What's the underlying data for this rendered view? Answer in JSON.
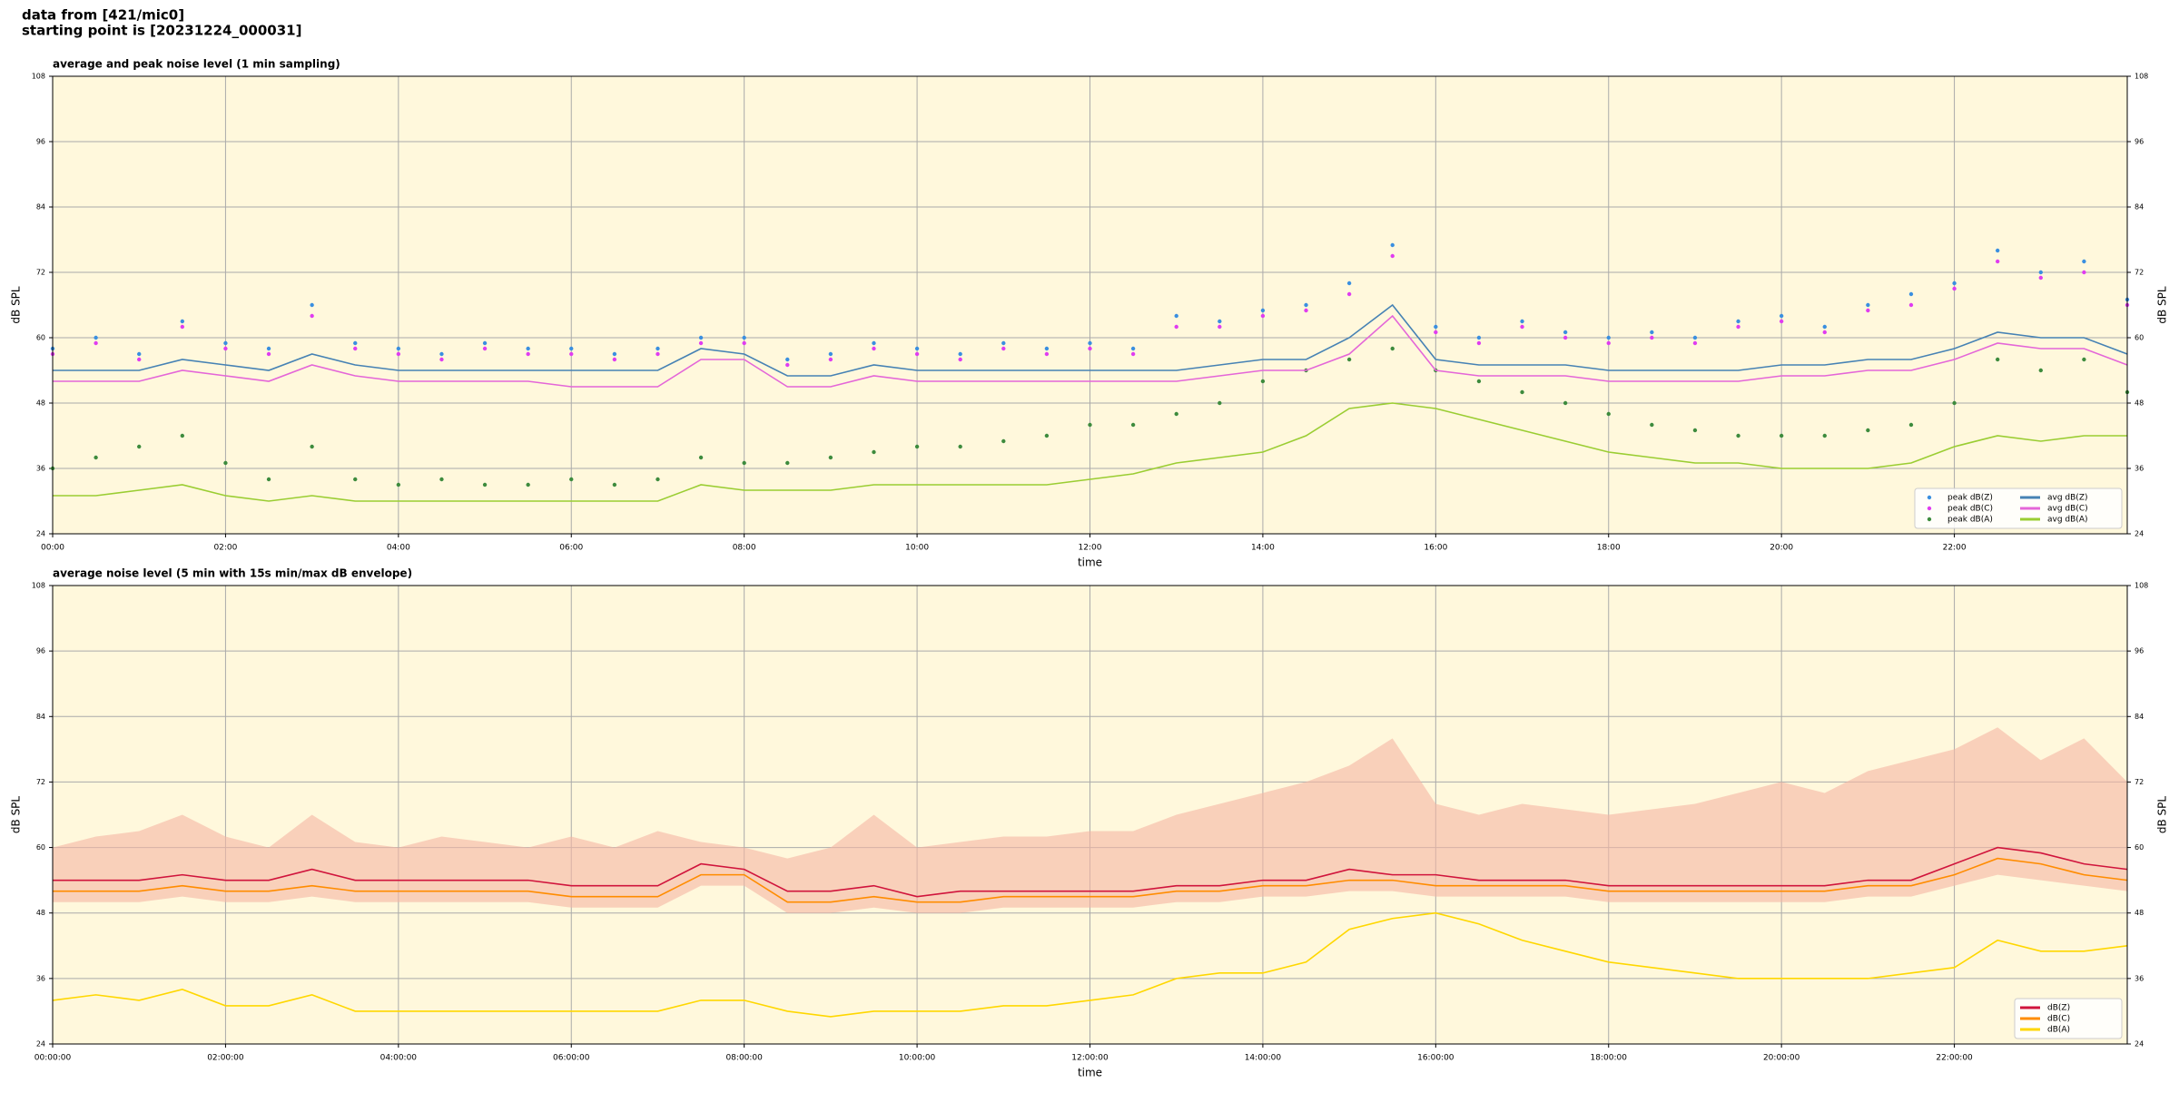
{
  "header": {
    "source": "data from [421/mic0]",
    "start": "starting point is [20231224_000031]"
  },
  "chart_data": [
    {
      "type": "line",
      "title": "average and peak noise level (1 min sampling)",
      "xlabel": "time",
      "ylabel": "dB SPL",
      "xlim": [
        0,
        24
      ],
      "ylim": [
        24,
        108
      ],
      "yticks": [
        24,
        36,
        48,
        60,
        72,
        84,
        96,
        108
      ],
      "xticks": [
        {
          "value": 0,
          "label": "00:00"
        },
        {
          "value": 2,
          "label": "02:00"
        },
        {
          "value": 4,
          "label": "04:00"
        },
        {
          "value": 6,
          "label": "06:00"
        },
        {
          "value": 8,
          "label": "08:00"
        },
        {
          "value": 10,
          "label": "10:00"
        },
        {
          "value": 12,
          "label": "12:00"
        },
        {
          "value": 14,
          "label": "14:00"
        },
        {
          "value": 16,
          "label": "16:00"
        },
        {
          "value": 18,
          "label": "18:00"
        },
        {
          "value": 20,
          "label": "20:00"
        },
        {
          "value": 22,
          "label": "22:00"
        }
      ],
      "grid": true,
      "legend": "lower right",
      "legend_columns": 2,
      "x": [
        0,
        0.5,
        1,
        1.5,
        2,
        2.5,
        3,
        3.5,
        4,
        4.5,
        5,
        5.5,
        6,
        6.5,
        7,
        7.5,
        8,
        8.5,
        9,
        9.5,
        10,
        10.5,
        11,
        11.5,
        12,
        12.5,
        13,
        13.5,
        14,
        14.5,
        15,
        15.5,
        16,
        16.5,
        17,
        17.5,
        18,
        18.5,
        19,
        19.5,
        20,
        20.5,
        21,
        21.5,
        22,
        22.5,
        23,
        23.5,
        24
      ],
      "series": [
        {
          "name": "peak dB(Z)",
          "type": "scatter",
          "color": "#3a8fe0",
          "values": [
            58,
            60,
            57,
            63,
            59,
            58,
            66,
            59,
            58,
            57,
            59,
            58,
            58,
            57,
            58,
            60,
            60,
            56,
            57,
            59,
            58,
            57,
            59,
            58,
            59,
            58,
            64,
            63,
            65,
            66,
            70,
            77,
            62,
            60,
            63,
            61,
            60,
            61,
            60,
            63,
            64,
            62,
            66,
            68,
            70,
            76,
            72,
            74,
            67
          ]
        },
        {
          "name": "peak dB(C)",
          "type": "scatter",
          "color": "#e03cf0",
          "values": [
            57,
            59,
            56,
            62,
            58,
            57,
            64,
            58,
            57,
            56,
            58,
            57,
            57,
            56,
            57,
            59,
            59,
            55,
            56,
            58,
            57,
            56,
            58,
            57,
            58,
            57,
            62,
            62,
            64,
            65,
            68,
            75,
            61,
            59,
            62,
            60,
            59,
            60,
            59,
            62,
            63,
            61,
            65,
            66,
            69,
            74,
            71,
            72,
            66
          ]
        },
        {
          "name": "peak dB(A)",
          "type": "scatter",
          "color": "#3d8b3d",
          "values": [
            36,
            38,
            40,
            42,
            37,
            34,
            40,
            34,
            33,
            34,
            33,
            33,
            34,
            33,
            34,
            38,
            37,
            37,
            38,
            39,
            40,
            40,
            41,
            42,
            44,
            44,
            46,
            48,
            52,
            54,
            56,
            58,
            54,
            52,
            50,
            48,
            46,
            44,
            43,
            42,
            42,
            42,
            43,
            44,
            48,
            56,
            54,
            56,
            50
          ]
        },
        {
          "name": "avg dB(Z)",
          "type": "line",
          "color": "#4682b4",
          "values": [
            54,
            54,
            54,
            56,
            55,
            54,
            57,
            55,
            54,
            54,
            54,
            54,
            54,
            54,
            54,
            58,
            57,
            53,
            53,
            55,
            54,
            54,
            54,
            54,
            54,
            54,
            54,
            55,
            56,
            56,
            60,
            66,
            56,
            55,
            55,
            55,
            54,
            54,
            54,
            54,
            55,
            55,
            56,
            56,
            58,
            61,
            60,
            60,
            57
          ]
        },
        {
          "name": "avg dB(C)",
          "type": "line",
          "color": "#e466d8",
          "values": [
            52,
            52,
            52,
            54,
            53,
            52,
            55,
            53,
            52,
            52,
            52,
            52,
            51,
            51,
            51,
            56,
            56,
            51,
            51,
            53,
            52,
            52,
            52,
            52,
            52,
            52,
            52,
            53,
            54,
            54,
            57,
            64,
            54,
            53,
            53,
            53,
            52,
            52,
            52,
            52,
            53,
            53,
            54,
            54,
            56,
            59,
            58,
            58,
            55
          ]
        },
        {
          "name": "avg dB(A)",
          "type": "line",
          "color": "#9acd32",
          "values": [
            31,
            31,
            32,
            33,
            31,
            30,
            31,
            30,
            30,
            30,
            30,
            30,
            30,
            30,
            30,
            33,
            32,
            32,
            32,
            33,
            33,
            33,
            33,
            33,
            34,
            35,
            37,
            38,
            39,
            42,
            47,
            48,
            47,
            45,
            43,
            41,
            39,
            38,
            37,
            37,
            36,
            36,
            36,
            37,
            40,
            42,
            41,
            42,
            42
          ]
        }
      ]
    },
    {
      "type": "line",
      "title": "average noise level (5 min with 15s min/max dB envelope)",
      "xlabel": "time",
      "ylabel": "dB SPL",
      "xlim": [
        0,
        24
      ],
      "ylim": [
        24,
        108
      ],
      "yticks": [
        24,
        36,
        48,
        60,
        72,
        84,
        96,
        108
      ],
      "xticks": [
        {
          "value": 0,
          "label": "00:00:00"
        },
        {
          "value": 2,
          "label": "02:00:00"
        },
        {
          "value": 4,
          "label": "04:00:00"
        },
        {
          "value": 6,
          "label": "06:00:00"
        },
        {
          "value": 8,
          "label": "08:00:00"
        },
        {
          "value": 10,
          "label": "10:00:00"
        },
        {
          "value": 12,
          "label": "12:00:00"
        },
        {
          "value": 14,
          "label": "14:00:00"
        },
        {
          "value": 16,
          "label": "16:00:00"
        },
        {
          "value": 18,
          "label": "18:00:00"
        },
        {
          "value": 20,
          "label": "20:00:00"
        },
        {
          "value": 22,
          "label": "22:00:00"
        }
      ],
      "grid": true,
      "legend": "lower right",
      "legend_columns": 1,
      "x": [
        0,
        0.5,
        1,
        1.5,
        2,
        2.5,
        3,
        3.5,
        4,
        4.5,
        5,
        5.5,
        6,
        6.5,
        7,
        7.5,
        8,
        8.5,
        9,
        9.5,
        10,
        10.5,
        11,
        11.5,
        12,
        12.5,
        13,
        13.5,
        14,
        14.5,
        15,
        15.5,
        16,
        16.5,
        17,
        17.5,
        18,
        18.5,
        19,
        19.5,
        20,
        20.5,
        21,
        21.5,
        22,
        22.5,
        23,
        23.5,
        24
      ],
      "envelope": {
        "color": "#f5b5a3",
        "max": [
          60,
          62,
          63,
          66,
          62,
          60,
          66,
          61,
          60,
          62,
          61,
          60,
          62,
          60,
          63,
          61,
          60,
          58,
          60,
          66,
          60,
          61,
          62,
          62,
          63,
          63,
          66,
          68,
          70,
          72,
          75,
          80,
          68,
          66,
          68,
          67,
          66,
          67,
          68,
          70,
          72,
          70,
          74,
          76,
          78,
          82,
          76,
          80,
          72
        ],
        "min": [
          50,
          50,
          50,
          51,
          50,
          50,
          51,
          50,
          50,
          50,
          50,
          50,
          49,
          49,
          49,
          53,
          53,
          48,
          48,
          49,
          48,
          48,
          49,
          49,
          49,
          49,
          50,
          50,
          51,
          51,
          52,
          52,
          51,
          51,
          51,
          51,
          50,
          50,
          50,
          50,
          50,
          50,
          51,
          51,
          53,
          55,
          54,
          53,
          52
        ]
      },
      "series": [
        {
          "name": "dB(Z)",
          "type": "line",
          "color": "#d0143c",
          "values": [
            54,
            54,
            54,
            55,
            54,
            54,
            56,
            54,
            54,
            54,
            54,
            54,
            53,
            53,
            53,
            57,
            56,
            52,
            52,
            53,
            51,
            52,
            52,
            52,
            52,
            52,
            53,
            53,
            54,
            54,
            56,
            55,
            55,
            54,
            54,
            54,
            53,
            53,
            53,
            53,
            53,
            53,
            54,
            54,
            57,
            60,
            59,
            57,
            56
          ]
        },
        {
          "name": "dB(C)",
          "type": "line",
          "color": "#ff8c00",
          "values": [
            52,
            52,
            52,
            53,
            52,
            52,
            53,
            52,
            52,
            52,
            52,
            52,
            51,
            51,
            51,
            55,
            55,
            50,
            50,
            51,
            50,
            50,
            51,
            51,
            51,
            51,
            52,
            52,
            53,
            53,
            54,
            54,
            53,
            53,
            53,
            53,
            52,
            52,
            52,
            52,
            52,
            52,
            53,
            53,
            55,
            58,
            57,
            55,
            54
          ]
        },
        {
          "name": "dB(A)",
          "type": "line",
          "color": "#ffd700",
          "values": [
            32,
            33,
            32,
            34,
            31,
            31,
            33,
            30,
            30,
            30,
            30,
            30,
            30,
            30,
            30,
            32,
            32,
            30,
            29,
            30,
            30,
            30,
            31,
            31,
            32,
            33,
            36,
            37,
            37,
            39,
            45,
            47,
            48,
            46,
            43,
            41,
            39,
            38,
            37,
            36,
            36,
            36,
            36,
            37,
            38,
            43,
            41,
            41,
            42
          ]
        }
      ]
    }
  ]
}
